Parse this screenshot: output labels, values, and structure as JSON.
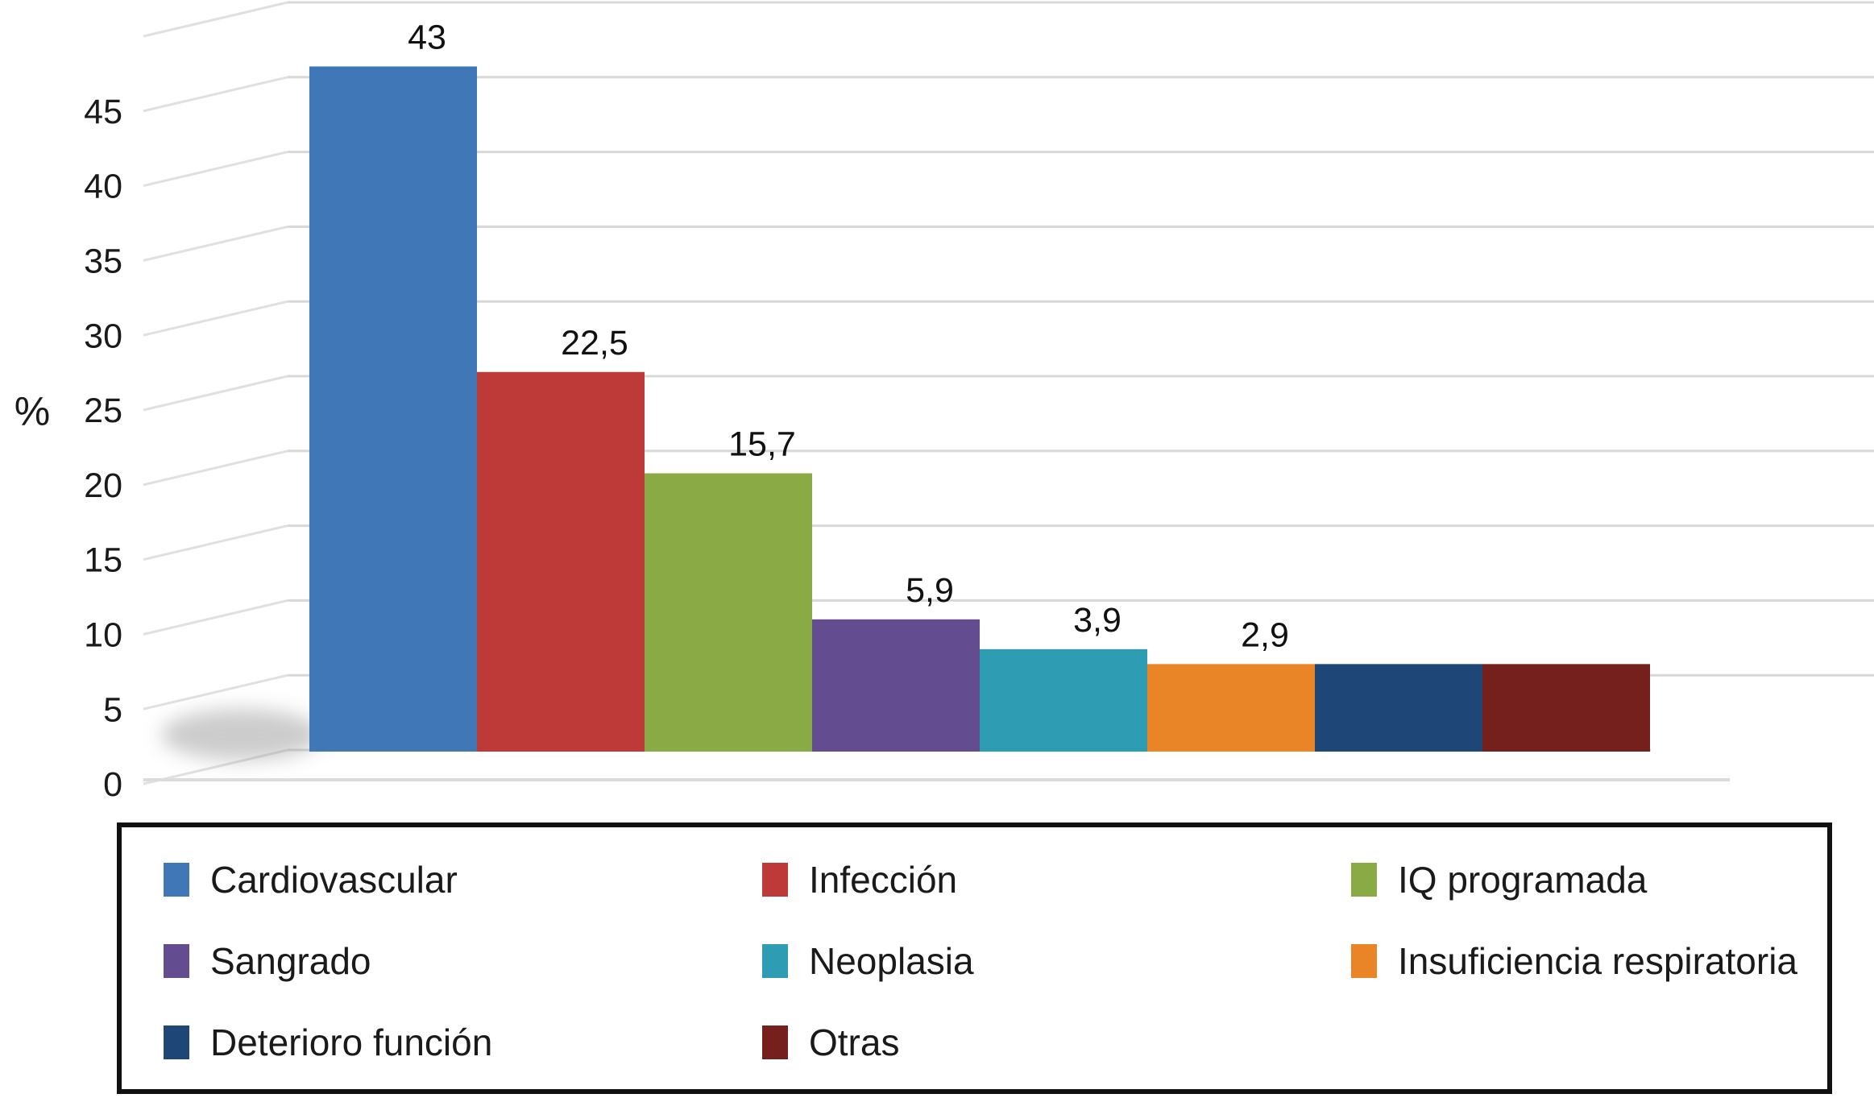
{
  "chart_data": {
    "type": "bar",
    "style": "3d-perspective-column",
    "title": "",
    "xlabel": "",
    "ylabel": "%",
    "categories": [
      "Cardiovascular",
      "Infección",
      "IQ programada",
      "Sangrado",
      "Neoplasia",
      "Insuficiencia respiratoria",
      "Deterioro función",
      "Otras"
    ],
    "values": [
      43,
      22.5,
      15.7,
      5.9,
      3.9,
      2.9,
      2.9,
      2.9
    ],
    "data_labels": [
      "43",
      "22,5",
      "15,7",
      "5,9",
      "3,9",
      "2,9",
      "",
      ""
    ],
    "bar_colors": [
      "#4077B7",
      "#BE3A38",
      "#89AA45",
      "#644C90",
      "#2E9DB4",
      "#E98527",
      "#1E4777",
      "#75201D"
    ],
    "ylim": [
      0,
      50
    ],
    "ytick_values": [
      0,
      5,
      10,
      15,
      20,
      25,
      30,
      35,
      40,
      45
    ],
    "ytick_labels": [
      "0",
      "5",
      "10",
      "15",
      "20",
      "25",
      "30",
      "35",
      "40",
      "45"
    ],
    "grid": true,
    "gridline_color": "#d8d8d8",
    "axis_line_color": "#dcdcdc",
    "legend_position": "bottom",
    "legend_columns": 3
  }
}
